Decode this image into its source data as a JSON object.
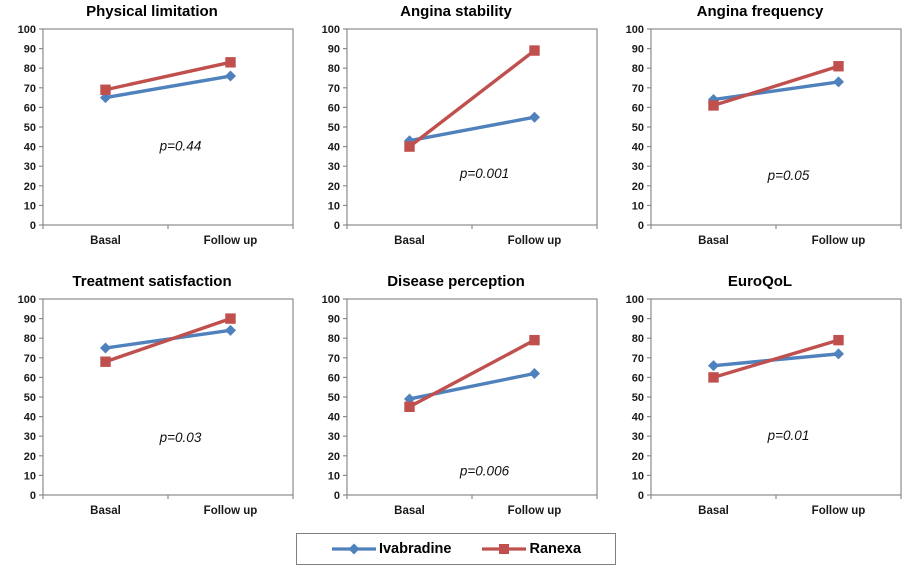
{
  "figure": {
    "background": "#ffffff"
  },
  "colors": {
    "ivabradine": "#4F81BD",
    "ranexa": "#C0504D",
    "axis": "#8C8C8C",
    "text": "#000000"
  },
  "legend": {
    "items": [
      {
        "label": "Ivabradine",
        "marker": "diamond",
        "color": "#4F81BD"
      },
      {
        "label": "Ranexa",
        "marker": "square",
        "color": "#C0504D"
      }
    ]
  },
  "chart_data": [
    {
      "type": "line",
      "title": "Physical limitation",
      "categories": [
        "Basal",
        "Follow up"
      ],
      "ylim": [
        0,
        100
      ],
      "ytick_step": 10,
      "grid": false,
      "series": [
        {
          "name": "Ivabradine",
          "marker": "diamond",
          "color": "#4F81BD",
          "values": [
            65,
            76
          ]
        },
        {
          "name": "Ranexa",
          "marker": "square",
          "color": "#C0504D",
          "values": [
            69,
            83
          ]
        }
      ],
      "annotation": {
        "text": "p=0.44",
        "y": 40
      }
    },
    {
      "type": "line",
      "title": "Angina stability",
      "categories": [
        "Basal",
        "Follow up"
      ],
      "ylim": [
        0,
        100
      ],
      "ytick_step": 10,
      "grid": false,
      "series": [
        {
          "name": "Ivabradine",
          "marker": "diamond",
          "color": "#4F81BD",
          "values": [
            43,
            55
          ]
        },
        {
          "name": "Ranexa",
          "marker": "square",
          "color": "#C0504D",
          "values": [
            40,
            89
          ]
        }
      ],
      "annotation": {
        "text": "p=0.001",
        "y": 26
      }
    },
    {
      "type": "line",
      "title": "Angina frequency",
      "categories": [
        "Basal",
        "Follow up"
      ],
      "ylim": [
        0,
        100
      ],
      "ytick_step": 10,
      "grid": false,
      "series": [
        {
          "name": "Ivabradine",
          "marker": "diamond",
          "color": "#4F81BD",
          "values": [
            64,
            73
          ]
        },
        {
          "name": "Ranexa",
          "marker": "square",
          "color": "#C0504D",
          "values": [
            61,
            81
          ]
        }
      ],
      "annotation": {
        "text": "p=0.05",
        "y": 25
      }
    },
    {
      "type": "line",
      "title": "Treatment satisfaction",
      "categories": [
        "Basal",
        "Follow up"
      ],
      "ylim": [
        0,
        100
      ],
      "ytick_step": 10,
      "grid": false,
      "series": [
        {
          "name": "Ivabradine",
          "marker": "diamond",
          "color": "#4F81BD",
          "values": [
            75,
            84
          ]
        },
        {
          "name": "Ranexa",
          "marker": "square",
          "color": "#C0504D",
          "values": [
            68,
            90
          ]
        }
      ],
      "annotation": {
        "text": "p=0.03",
        "y": 29
      }
    },
    {
      "type": "line",
      "title": "Disease perception",
      "categories": [
        "Basal",
        "Follow up"
      ],
      "ylim": [
        0,
        100
      ],
      "ytick_step": 10,
      "grid": false,
      "series": [
        {
          "name": "Ivabradine",
          "marker": "diamond",
          "color": "#4F81BD",
          "values": [
            49,
            62
          ]
        },
        {
          "name": "Ranexa",
          "marker": "square",
          "color": "#C0504D",
          "values": [
            45,
            79
          ]
        }
      ],
      "annotation": {
        "text": "p=0.006",
        "y": 12
      }
    },
    {
      "type": "line",
      "title": "EuroQoL",
      "categories": [
        "Basal",
        "Follow up"
      ],
      "ylim": [
        0,
        100
      ],
      "ytick_step": 10,
      "grid": false,
      "series": [
        {
          "name": "Ivabradine",
          "marker": "diamond",
          "color": "#4F81BD",
          "values": [
            66,
            72
          ]
        },
        {
          "name": "Ranexa",
          "marker": "square",
          "color": "#C0504D",
          "values": [
            60,
            79
          ]
        }
      ],
      "annotation": {
        "text": "p=0.01",
        "y": 30
      }
    }
  ]
}
